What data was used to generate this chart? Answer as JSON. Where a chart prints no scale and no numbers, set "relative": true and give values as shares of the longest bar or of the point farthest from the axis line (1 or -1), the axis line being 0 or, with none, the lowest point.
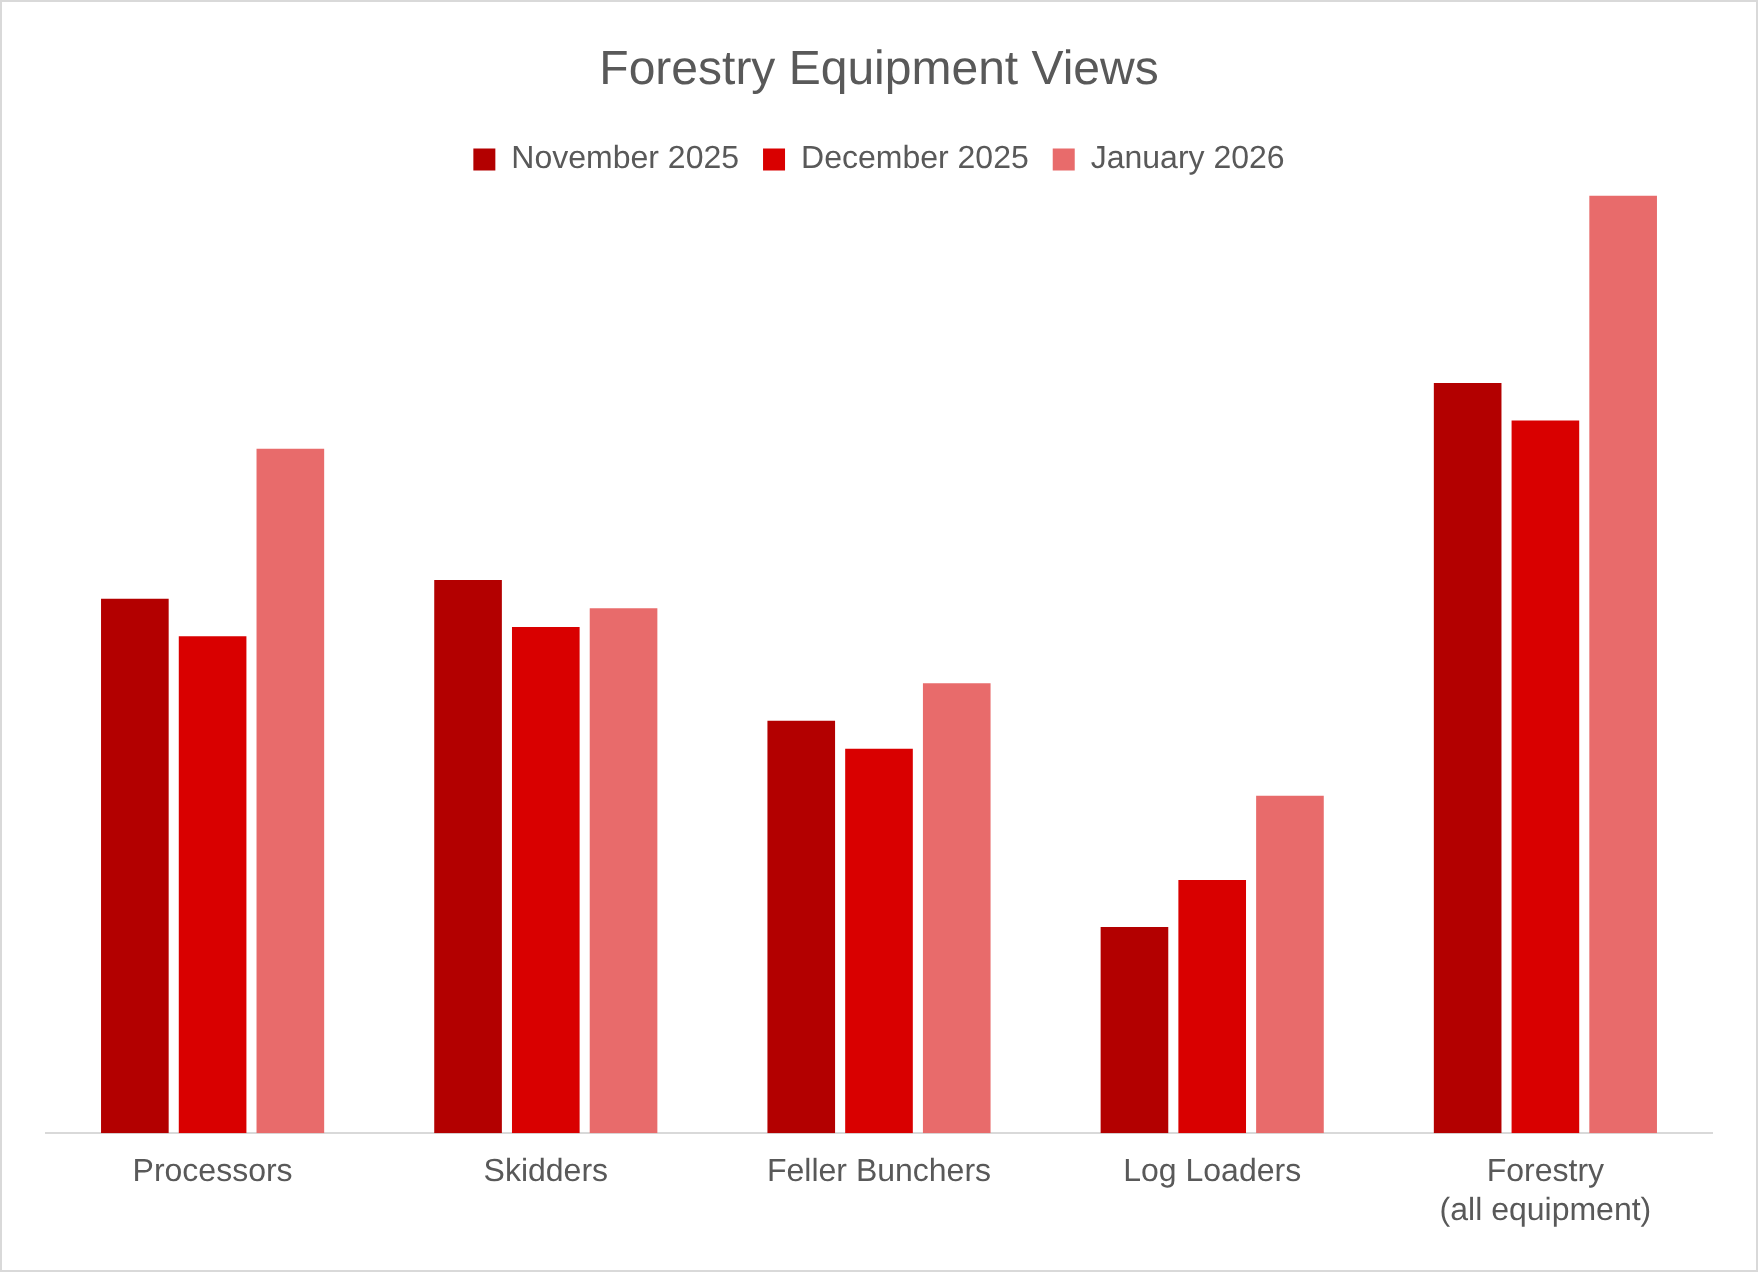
{
  "chart_data": {
    "type": "bar",
    "title": "Forestry Equipment Views",
    "relative": true,
    "legend": "top",
    "grid": false,
    "categories": [
      "Processors",
      "Skidders",
      "Feller Bunchers",
      "Log Loaders",
      "Forestry\n(all equipment)"
    ],
    "series": [
      {
        "name": "November 2025",
        "color": "#b30000",
        "values": [
          0.57,
          0.59,
          0.44,
          0.22,
          0.8
        ]
      },
      {
        "name": "December 2025",
        "color": "#d90000",
        "values": [
          0.53,
          0.54,
          0.41,
          0.27,
          0.76
        ]
      },
      {
        "name": "January 2026",
        "color": "#e86b6b",
        "values": [
          0.73,
          0.56,
          0.48,
          0.36,
          1
        ]
      }
    ]
  }
}
